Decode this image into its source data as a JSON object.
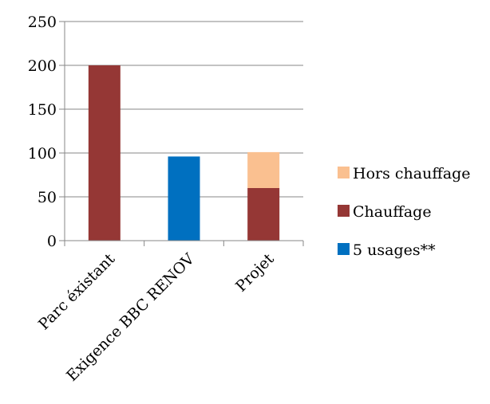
{
  "chart_data": {
    "type": "bar",
    "stacked": true,
    "categories": [
      "Parc éxistant",
      "Exigence BBC RENOV",
      "Projet"
    ],
    "series": [
      {
        "name": "5 usages**",
        "values": [
          0,
          96,
          0
        ],
        "color": "#0070C0"
      },
      {
        "name": "Chauffage",
        "values": [
          200,
          0,
          60
        ],
        "color": "#953735"
      },
      {
        "name": "Hors chauffage",
        "values": [
          0,
          0,
          41
        ],
        "color": "#FAC090"
      }
    ],
    "legend_order": [
      "Hors chauffage",
      "Chauffage",
      "5 usages**"
    ],
    "yticks": [
      "0",
      "50",
      "100",
      "150",
      "200",
      "250"
    ],
    "ylim": [
      0,
      250
    ],
    "grid": true,
    "legend_position": "right",
    "title": "",
    "xlabel": "",
    "ylabel": ""
  }
}
